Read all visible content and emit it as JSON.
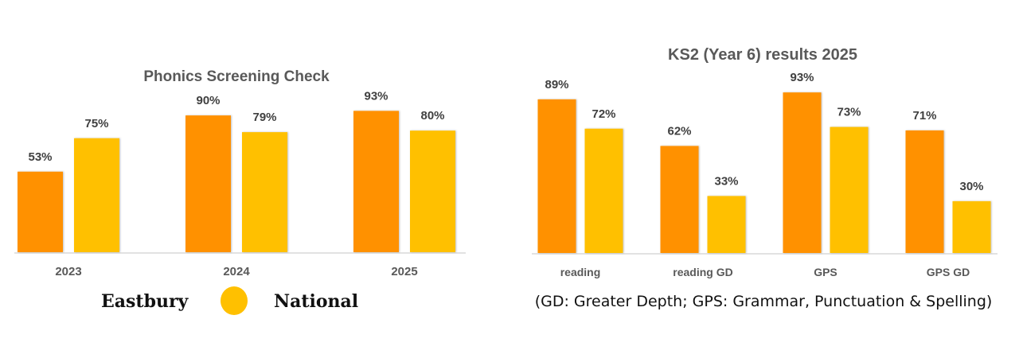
{
  "colors": {
    "eastbury": "#FF9100",
    "national": "#FFC000",
    "label_text": "#404040",
    "title_text": "#595959"
  },
  "legend": {
    "items": [
      {
        "name": "Eastbury",
        "marker": "none"
      },
      {
        "name": "",
        "marker": "circle",
        "color": "#FFC000"
      },
      {
        "name": "National",
        "marker": "none"
      }
    ],
    "eastbury_label": "Eastbury",
    "national_label": "National",
    "placement": "bottom"
  },
  "footnote": "(GD: Greater Depth; GPS: Grammar, Punctuation & Spelling)",
  "chart_data": [
    {
      "type": "bar",
      "title": "Phonics Screening Check",
      "categories": [
        "2023",
        "2024",
        "2025"
      ],
      "series": [
        {
          "name": "Eastbury",
          "values": [
            53,
            90,
            93
          ],
          "labels": [
            "53%",
            "90%",
            "93%"
          ]
        },
        {
          "name": "National",
          "values": [
            75,
            79,
            80
          ],
          "labels": [
            "75%",
            "79%",
            "80%"
          ]
        }
      ],
      "xlabel": "",
      "ylabel": "",
      "ylim": [
        0,
        100
      ],
      "grid": false,
      "legend_placement": "bottom"
    },
    {
      "type": "bar",
      "title": "KS2 (Year 6) results 2025",
      "categories": [
        "reading",
        "reading GD",
        "GPS",
        "GPS GD"
      ],
      "series": [
        {
          "name": "Eastbury",
          "values": [
            89,
            62,
            93,
            71
          ],
          "labels": [
            "89%",
            "62%",
            "93%",
            "71%"
          ]
        },
        {
          "name": "National",
          "values": [
            72,
            33,
            73,
            30
          ],
          "labels": [
            "72%",
            "33%",
            "73%",
            "30%"
          ]
        }
      ],
      "xlabel": "",
      "ylabel": "",
      "ylim": [
        0,
        100
      ],
      "grid": false
    }
  ]
}
